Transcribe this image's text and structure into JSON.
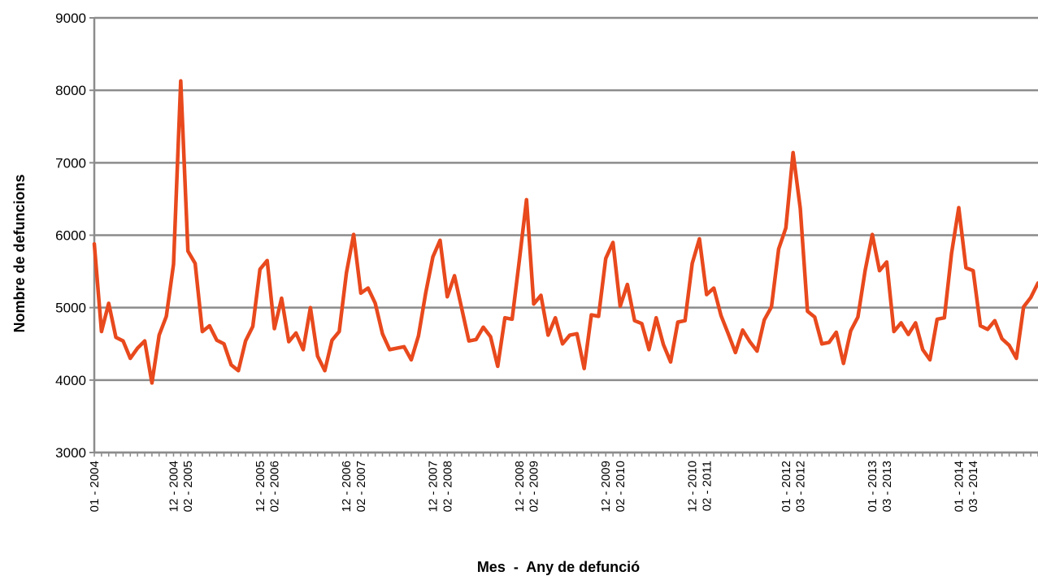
{
  "chart_data": {
    "type": "line",
    "title": "",
    "xlabel": "Mes  -  Any de defunció",
    "ylabel": "Nombre de defuncions",
    "ylim": [
      3000,
      9000
    ],
    "yticks": [
      3000,
      4000,
      5000,
      6000,
      7000,
      8000,
      9000
    ],
    "grid": true,
    "legend": "none",
    "series_color": "#e8491d",
    "x_start": "01 - 2004",
    "x_labels": [
      {
        "index": 0,
        "label": "01 - 2004"
      },
      {
        "index": 11,
        "label": "12 - 2004"
      },
      {
        "index": 13,
        "label": "02 - 2005"
      },
      {
        "index": 23,
        "label": "12 - 2005"
      },
      {
        "index": 25,
        "label": "02 - 2006"
      },
      {
        "index": 35,
        "label": "12 - 2006"
      },
      {
        "index": 37,
        "label": "02 - 2007"
      },
      {
        "index": 47,
        "label": "12 - 2007"
      },
      {
        "index": 49,
        "label": "02 - 2008"
      },
      {
        "index": 59,
        "label": "12 - 2008"
      },
      {
        "index": 61,
        "label": "02 - 2009"
      },
      {
        "index": 71,
        "label": "12 - 2009"
      },
      {
        "index": 73,
        "label": "02 - 2010"
      },
      {
        "index": 83,
        "label": "12 - 2010"
      },
      {
        "index": 85,
        "label": "02 - 2011"
      },
      {
        "index": 96,
        "label": "01 - 2012"
      },
      {
        "index": 98,
        "label": "03 - 2012"
      },
      {
        "index": 108,
        "label": "01 - 2013"
      },
      {
        "index": 110,
        "label": "03 - 2013"
      },
      {
        "index": 120,
        "label": "01 - 2014"
      },
      {
        "index": 122,
        "label": "03 - 2014"
      }
    ],
    "series": [
      {
        "values": [
          5880,
          4670,
          5060,
          4590,
          4540,
          4300,
          4440,
          4540,
          3960,
          4620,
          4880,
          5600,
          8130,
          5780,
          5610,
          4670,
          4750,
          4550,
          4500,
          4210,
          4130,
          4540,
          4740,
          5530,
          5650,
          4710,
          5130,
          4530,
          4650,
          4420,
          5000,
          4330,
          4130,
          4550,
          4670,
          5480,
          6010,
          5200,
          5270,
          5060,
          4640,
          4420,
          4440,
          4460,
          4280,
          4610,
          5200,
          5700,
          5930,
          5150,
          5440,
          4990,
          4540,
          4560,
          4730,
          4600,
          4190,
          4860,
          4840,
          5650,
          6490,
          5050,
          5170,
          4620,
          4860,
          4500,
          4620,
          4640,
          4160,
          4900,
          4880,
          5680,
          5900,
          5020,
          5320,
          4820,
          4780,
          4420,
          4860,
          4490,
          4250,
          4800,
          4820,
          5610,
          5950,
          5180,
          5270,
          4890,
          4640,
          4380,
          4690,
          4530,
          4400,
          4830,
          5010,
          5810,
          6100,
          7140,
          6370,
          4950,
          4870,
          4500,
          4520,
          4660,
          4230,
          4680,
          4870,
          5510,
          6010,
          5510,
          5630,
          4670,
          4790,
          4630,
          4790,
          4420,
          4280,
          4840,
          4860,
          5750,
          6380,
          5550,
          5510,
          4750,
          4700,
          4820,
          4570,
          4480,
          4300,
          5010,
          5140,
          5340
        ]
      }
    ]
  }
}
